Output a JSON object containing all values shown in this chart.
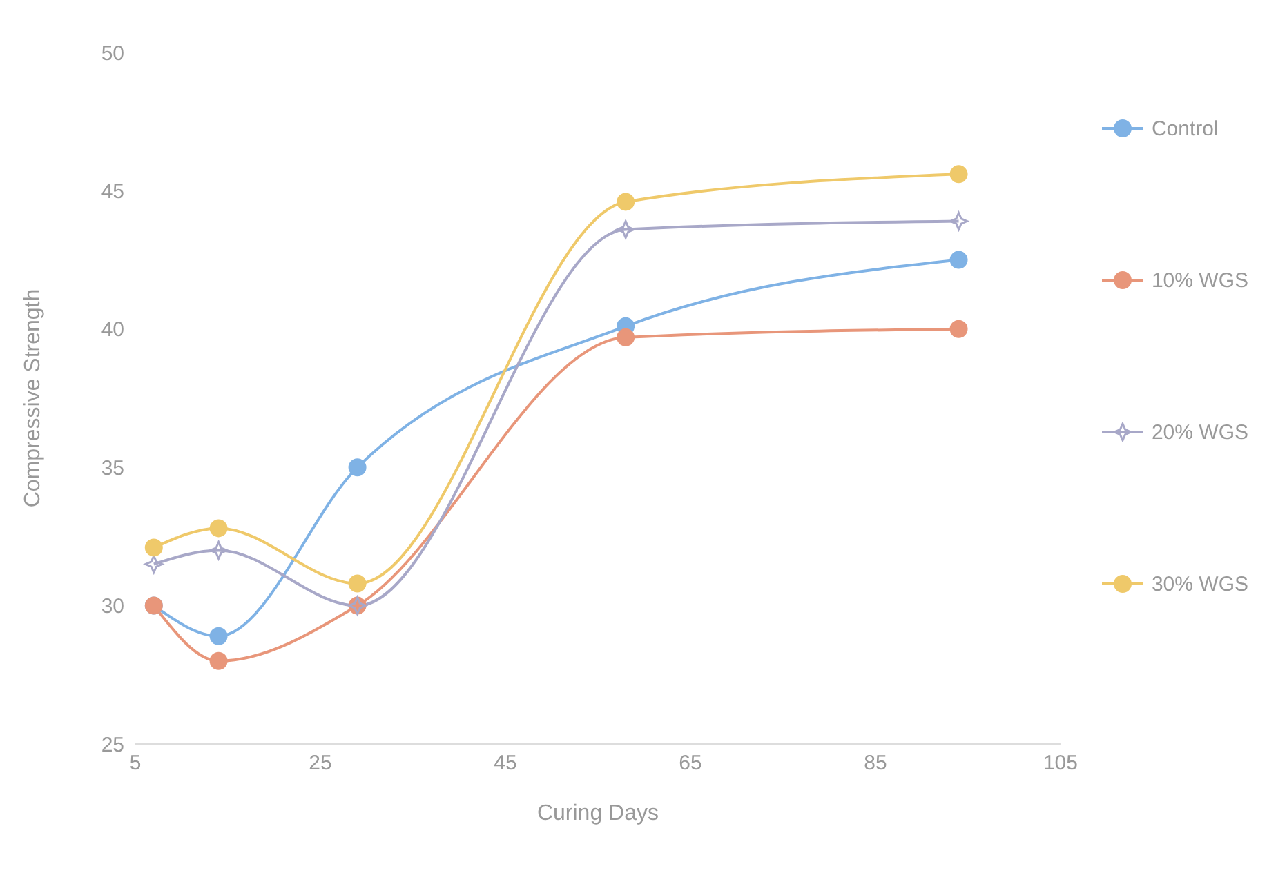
{
  "chart_data": {
    "type": "line",
    "xlabel": "Curing Days",
    "ylabel": "Compressive Strength",
    "x": [
      7,
      14,
      29,
      58,
      94
    ],
    "xlim": [
      5,
      105
    ],
    "xticks": [
      5,
      25,
      45,
      65,
      85,
      105
    ],
    "ylim": [
      25,
      50
    ],
    "yticks": [
      25,
      30,
      35,
      40,
      45,
      50
    ],
    "grid": false,
    "legend": "right",
    "series": [
      {
        "name": "Control",
        "color": "#7fb2e5",
        "marker": "circle",
        "values": [
          30,
          28.9,
          35,
          40.1,
          42.5
        ]
      },
      {
        "name": "10% WGS",
        "color": "#e8967a",
        "marker": "circle",
        "values": [
          30,
          28,
          30,
          39.7,
          40
        ]
      },
      {
        "name": "20% WGS",
        "color": "#a8a8c8",
        "marker": "star",
        "values": [
          31.5,
          32,
          30,
          43.6,
          43.9
        ]
      },
      {
        "name": "30% WGS",
        "color": "#efc96a",
        "marker": "circle",
        "values": [
          32.1,
          32.8,
          30.8,
          44.6,
          45.6
        ]
      }
    ]
  }
}
